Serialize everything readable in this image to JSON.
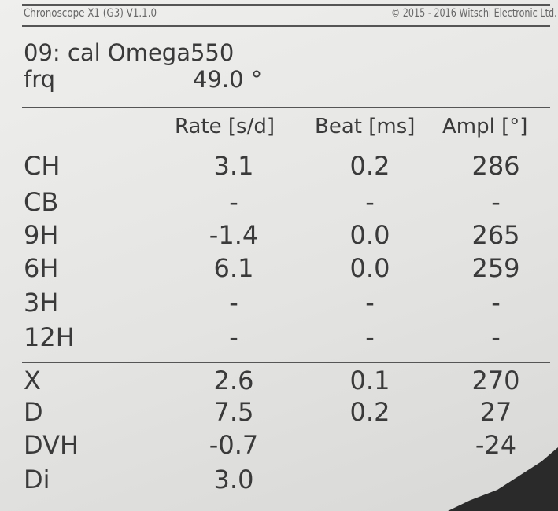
{
  "header": {
    "software": "Chronoscope X1 (G3) V1.1.0",
    "copyright": "© 2015 - 2016 Witschi Electronic Ltd."
  },
  "title": "09:  cal Omega550",
  "frq": {
    "label": "frq",
    "value": "49.0 °"
  },
  "columns": [
    "Rate [s/d]",
    "Beat [ms]",
    "Ampl [°]"
  ],
  "rows": [
    {
      "label": "CH",
      "rate": "3.1",
      "beat": "0.2",
      "ampl": "286"
    },
    {
      "label": "CB",
      "rate": "-",
      "beat": "-",
      "ampl": "-"
    },
    {
      "label": "9H",
      "rate": "-1.4",
      "beat": "0.0",
      "ampl": "265"
    },
    {
      "label": "6H",
      "rate": "6.1",
      "beat": "0.0",
      "ampl": "259"
    },
    {
      "label": "3H",
      "rate": "-",
      "beat": "-",
      "ampl": "-"
    },
    {
      "label": "12H",
      "rate": "-",
      "beat": "-",
      "ampl": "-"
    }
  ],
  "summary": [
    {
      "label": "X",
      "rate": "2.6",
      "beat": "0.1",
      "ampl": "270"
    },
    {
      "label": "D",
      "rate": "7.5",
      "beat": "0.2",
      "ampl": "27"
    },
    {
      "label": "DVH",
      "rate": "-0.7",
      "beat": "",
      "ampl": "-24"
    },
    {
      "label": "Di",
      "rate": "3.0",
      "beat": "",
      "ampl": ""
    }
  ]
}
